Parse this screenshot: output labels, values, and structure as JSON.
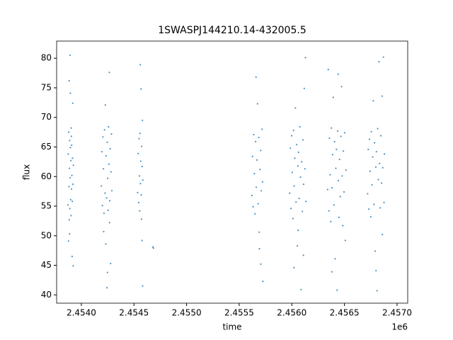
{
  "chart_data": {
    "type": "scatter",
    "title": "1SWASPJ144210.14-432005.5",
    "x_label": "time",
    "y_label": "flux",
    "x_offset_label": "1e6",
    "xlim": [
      2453765,
      2457101
    ],
    "ylim": [
      38.6,
      82.9
    ],
    "xticks": [
      {
        "value": 2454000,
        "label": "2.4540"
      },
      {
        "value": 2454500,
        "label": "2.4545"
      },
      {
        "value": 2455000,
        "label": "2.4550"
      },
      {
        "value": 2455500,
        "label": "2.4555"
      },
      {
        "value": 2456000,
        "label": "2.4560"
      },
      {
        "value": 2456500,
        "label": "2.4565"
      },
      {
        "value": 2457000,
        "label": "2.4570"
      }
    ],
    "yticks": [
      40,
      45,
      50,
      55,
      60,
      65,
      70,
      75,
      80
    ],
    "series": [
      {
        "color": "#1f77b4",
        "x": [
          2453872,
          2453875,
          2453878,
          2453880,
          2453882,
          2453884,
          2453885,
          2453887,
          2453889,
          2453890,
          2453892,
          2453894,
          2453896,
          2453898,
          2453900,
          2453902,
          2453904,
          2453906,
          2453908,
          2453910,
          2453912,
          2453914,
          2453916,
          2453918,
          2453920,
          2453922,
          2453924,
          2453888,
          2453895,
          2453905,
          2454190,
          2454195,
          2454200,
          2454205,
          2454210,
          2454215,
          2454220,
          2454225,
          2454228,
          2454232,
          2454236,
          2454240,
          2454243,
          2454246,
          2454250,
          2454254,
          2454258,
          2454262,
          2454266,
          2454270,
          2454274,
          2454278,
          2454282,
          2454286,
          2454290,
          2454212,
          2454248,
          2454268,
          2454535,
          2454540,
          2454545,
          2454548,
          2454552,
          2454555,
          2454558,
          2454561,
          2454564,
          2454567,
          2454570,
          2454573,
          2454576,
          2454578,
          2454580,
          2454582,
          2454584,
          2454560,
          2454571,
          2454680,
          2454685,
          2455620,
          2455626,
          2455632,
          2455638,
          2455644,
          2455650,
          2455656,
          2455662,
          2455668,
          2455674,
          2455680,
          2455686,
          2455692,
          2455698,
          2455704,
          2455710,
          2455716,
          2455722,
          2455725,
          2455660,
          2455690,
          2455705,
          2455980,
          2455986,
          2455992,
          2455998,
          2456004,
          2456010,
          2456016,
          2456022,
          2456028,
          2456034,
          2456040,
          2456046,
          2456052,
          2456058,
          2456064,
          2456070,
          2456076,
          2456082,
          2456088,
          2456094,
          2456100,
          2456106,
          2456112,
          2456118,
          2456124,
          2456130,
          2456134,
          2456020,
          2456060,
          2456110,
          2456340,
          2456346,
          2456352,
          2456358,
          2456364,
          2456370,
          2456376,
          2456382,
          2456388,
          2456394,
          2456400,
          2456406,
          2456412,
          2456418,
          2456424,
          2456430,
          2456436,
          2456442,
          2456448,
          2456454,
          2456460,
          2456466,
          2456472,
          2456478,
          2456484,
          2456490,
          2456496,
          2456502,
          2456508,
          2456514,
          2456380,
          2456440,
          2456720,
          2456726,
          2456732,
          2456738,
          2456744,
          2456750,
          2456756,
          2456762,
          2456768,
          2456774,
          2456780,
          2456786,
          2456792,
          2456798,
          2456804,
          2456810,
          2456816,
          2456822,
          2456828,
          2456834,
          2456840,
          2456846,
          2456852,
          2456858,
          2456864,
          2456870,
          2456876,
          2456880,
          2456800,
          2456860
        ],
        "values": [
          55.2,
          63.8,
          49.1,
          67.5,
          58.3,
          76.2,
          52.7,
          61.4,
          66.1,
          54.6,
          80.5,
          59.8,
          64.9,
          56.1,
          62.7,
          53.4,
          68.2,
          57.9,
          65.3,
          60.2,
          46.5,
          55.8,
          63.1,
          72.4,
          58.7,
          44.9,
          61.9,
          50.3,
          74.1,
          66.8,
          58.4,
          64.2,
          55.1,
          66.7,
          61.3,
          53.8,
          67.9,
          57.2,
          72.1,
          48.6,
          63.5,
          56.4,
          41.2,
          65.8,
          59.7,
          54.3,
          68.4,
          62.1,
          77.6,
          55.9,
          64.7,
          45.3,
          60.8,
          67.2,
          57.6,
          50.7,
          43.8,
          52.2,
          57.3,
          63.9,
          55.6,
          66.4,
          60.1,
          54.2,
          67.3,
          58.8,
          62.6,
          74.8,
          56.9,
          65.1,
          49.2,
          61.7,
          69.5,
          41.5,
          59.4,
          78.9,
          52.8,
          48.1,
          47.9,
          56.8,
          63.4,
          54.9,
          67.1,
          60.5,
          53.7,
          65.9,
          58.2,
          62.8,
          72.3,
          55.4,
          66.6,
          47.8,
          61.2,
          64.4,
          57.6,
          68.0,
          59.1,
          42.3,
          76.8,
          50.6,
          45.2,
          57.2,
          64.8,
          54.6,
          66.9,
          60.7,
          52.9,
          67.8,
          58.4,
          63.1,
          71.6,
          55.7,
          65.4,
          48.3,
          61.8,
          64.1,
          56.3,
          68.4,
          59.9,
          40.9,
          62.5,
          54.1,
          66.2,
          58.7,
          74.9,
          61.3,
          80.1,
          55.8,
          44.6,
          50.9,
          46.7,
          57.8,
          78.1,
          54.2,
          66.5,
          60.3,
          52.4,
          68.2,
          58.1,
          63.7,
          73.4,
          55.2,
          65.9,
          46.1,
          61.4,
          64.6,
          40.8,
          67.7,
          59.3,
          53.1,
          62.9,
          56.6,
          66.8,
          75.2,
          60.1,
          51.7,
          64.3,
          57.4,
          67.4,
          49.2,
          61.1,
          43.9,
          77.3,
          57.1,
          64.6,
          54.5,
          66.3,
          60.9,
          53.2,
          67.6,
          58.6,
          63.3,
          72.8,
          55.3,
          65.7,
          47.4,
          61.6,
          64.2,
          40.7,
          68.1,
          59.5,
          79.4,
          62.2,
          54.7,
          66.9,
          58.9,
          73.6,
          61.5,
          80.2,
          55.6,
          63.8,
          44.1,
          50.2
        ]
      }
    ]
  }
}
